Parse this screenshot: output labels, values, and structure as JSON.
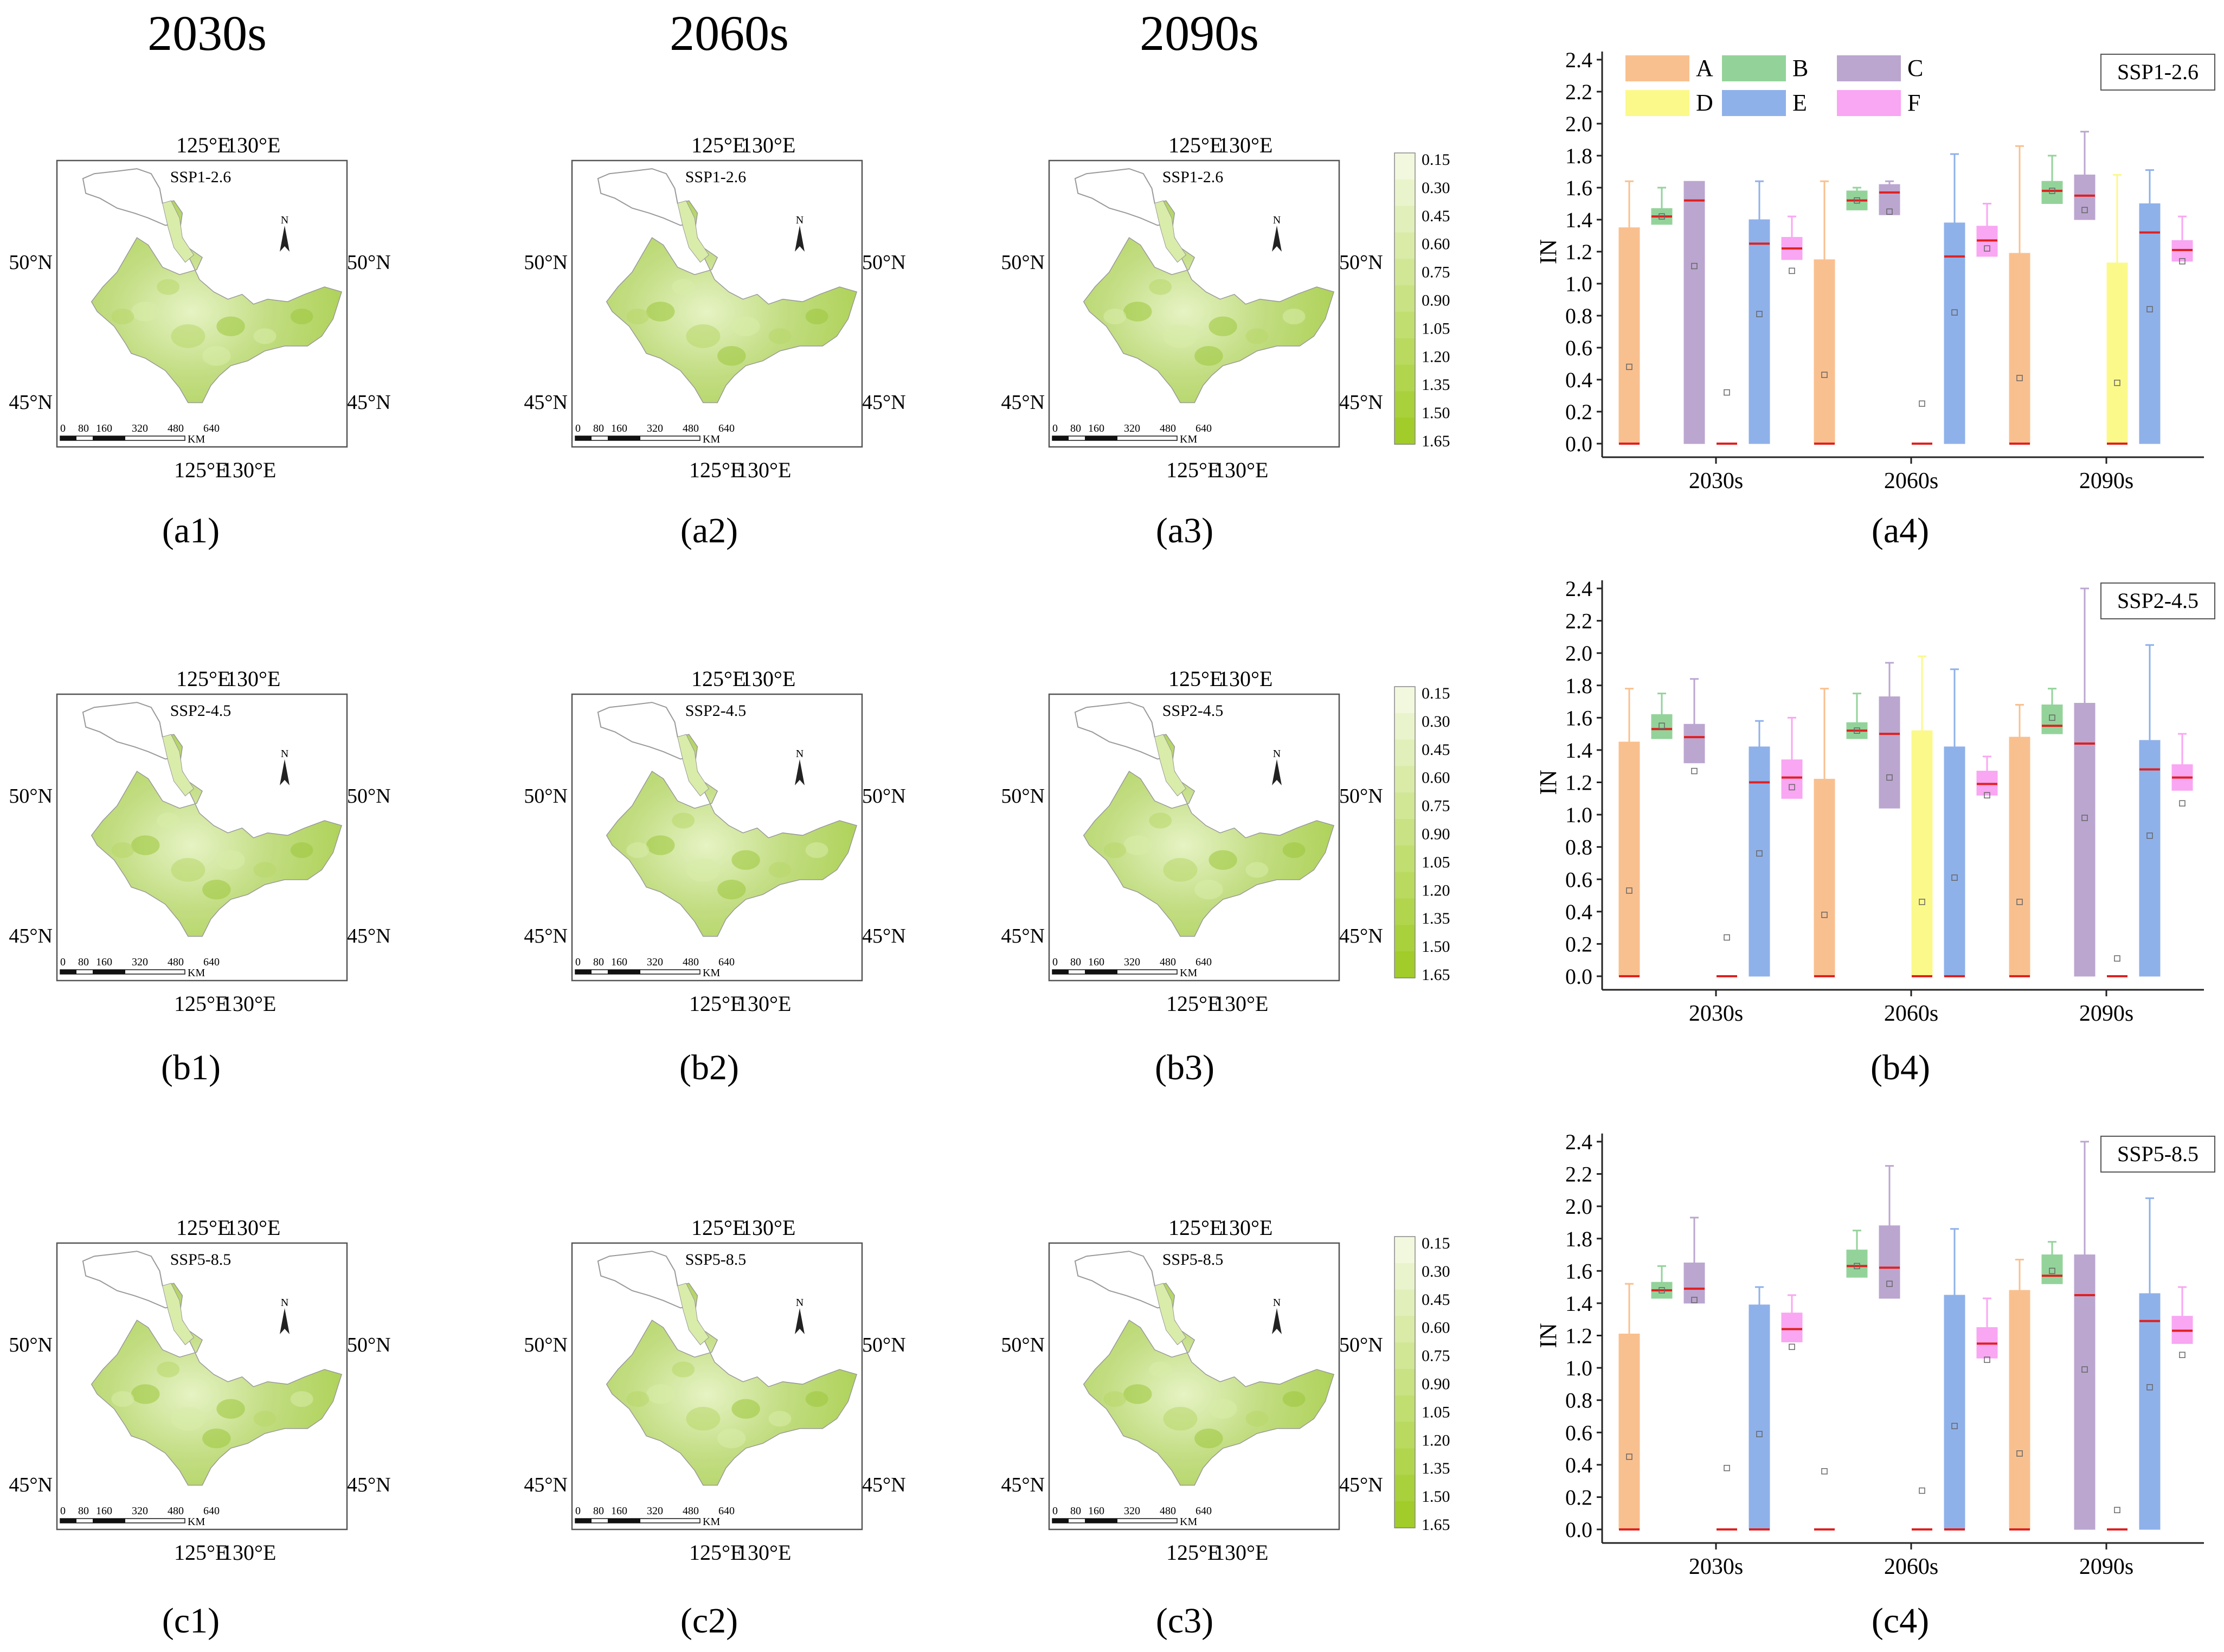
{
  "column_headers": [
    "2030s",
    "2060s",
    "2090s"
  ],
  "scenarios": [
    "SSP1-2.6",
    "SSP2-4.5",
    "SSP5-8.5"
  ],
  "map": {
    "lon_top": [
      "125°E",
      "130°E"
    ],
    "lon_bottom": [
      "125°E",
      "130°E"
    ],
    "lat_left": [
      "50°N",
      "45°N"
    ],
    "lat_right": [
      "50°N",
      "45°N"
    ],
    "north_label": "N",
    "scalebar_ticks": [
      "0",
      "80",
      "160",
      "320",
      "480",
      "640"
    ],
    "scalebar_unit": "KM",
    "colors": {
      "land_light": "#d9ecaa",
      "land_mid": "#b8d76a",
      "land_dark": "#9cc63c",
      "outline": "#999999"
    }
  },
  "legend_bar": {
    "labels": [
      "0.15",
      "0.30",
      "0.45",
      "0.60",
      "0.75",
      "0.90",
      "1.05",
      "1.20",
      "1.35",
      "1.50",
      "1.65"
    ],
    "colors": [
      "#f1f8de",
      "#e9f4cc",
      "#e1efba",
      "#d9eba7",
      "#d1e795",
      "#c9e283",
      "#c1de71",
      "#b9da5f",
      "#b1d54d",
      "#a9d13b",
      "#a1cc29"
    ]
  },
  "panel_labels": {
    "row_a": [
      "(a1)",
      "(a2)",
      "(a3)",
      "(a4)"
    ],
    "row_b": [
      "(b1)",
      "(b2)",
      "(b3)",
      "(b4)"
    ],
    "row_c": [
      "(c1)",
      "(c2)",
      "(c3)",
      "(c4)"
    ]
  },
  "box_legend": [
    {
      "key": "A",
      "color": "#f9c08f"
    },
    {
      "key": "B",
      "color": "#93d39a"
    },
    {
      "key": "C",
      "color": "#bba6d0"
    },
    {
      "key": "D",
      "color": "#fbf98a"
    },
    {
      "key": "E",
      "color": "#8fb1ea"
    },
    {
      "key": "F",
      "color": "#f9a6f3"
    }
  ],
  "chart_data": [
    {
      "type": "box",
      "scenario": "SSP1-2.6",
      "title": "SSP1-2.6",
      "ylabel": "IN",
      "ylim": [
        0.0,
        2.4
      ],
      "yticks": [
        "0.0",
        "0.2",
        "0.4",
        "0.6",
        "0.8",
        "1.0",
        "1.2",
        "1.4",
        "1.6",
        "1.8",
        "2.0",
        "2.2",
        "2.4"
      ],
      "categories": [
        "2030s",
        "2060s",
        "2090s"
      ],
      "series": [
        {
          "name": "A",
          "color": "#f9c08f",
          "boxes": [
            {
              "q1": 0.0,
              "q3": 1.35,
              "median": 0.0,
              "mean": 0.48,
              "wlo": 0.0,
              "whi": 1.64
            },
            {
              "q1": 0.0,
              "q3": 1.15,
              "median": 0.0,
              "mean": 0.43,
              "wlo": 0.0,
              "whi": 1.64
            },
            {
              "q1": 0.0,
              "q3": 1.19,
              "median": 0.0,
              "mean": 0.41,
              "wlo": 0.0,
              "whi": 1.86
            }
          ]
        },
        {
          "name": "B",
          "color": "#93d39a",
          "boxes": [
            {
              "q1": 1.37,
              "q3": 1.47,
              "median": 1.42,
              "mean": 1.42,
              "wlo": 1.3,
              "whi": 1.6
            },
            {
              "q1": 1.46,
              "q3": 1.58,
              "median": 1.52,
              "mean": 1.52,
              "wlo": 1.35,
              "whi": 1.6
            },
            {
              "q1": 1.5,
              "q3": 1.64,
              "median": 1.58,
              "mean": 1.58,
              "wlo": 1.4,
              "whi": 1.8
            }
          ]
        },
        {
          "name": "C",
          "color": "#bba6d0",
          "boxes": [
            {
              "q1": 0.0,
              "q3": 1.64,
              "median": 1.52,
              "mean": 1.11,
              "wlo": 0.0,
              "whi": 1.64
            },
            {
              "q1": 1.43,
              "q3": 1.62,
              "median": 1.57,
              "mean": 1.45,
              "wlo": 1.19,
              "whi": 1.64
            },
            {
              "q1": 1.4,
              "q3": 1.68,
              "median": 1.55,
              "mean": 1.46,
              "wlo": 1.36,
              "whi": 1.95
            }
          ]
        },
        {
          "name": "D",
          "color": "#fbf98a",
          "boxes": [
            {
              "q1": 0.0,
              "q3": 0.0,
              "median": 0.0,
              "mean": 0.32,
              "wlo": 0.0,
              "whi": 0.0
            },
            {
              "q1": 0.0,
              "q3": 0.0,
              "median": 0.0,
              "mean": 0.25,
              "wlo": 0.0,
              "whi": 0.0
            },
            {
              "q1": 0.0,
              "q3": 1.13,
              "median": 0.0,
              "mean": 0.38,
              "wlo": 0.0,
              "whi": 1.68
            }
          ]
        },
        {
          "name": "E",
          "color": "#8fb1ea",
          "boxes": [
            {
              "q1": 0.0,
              "q3": 1.4,
              "median": 1.25,
              "mean": 0.81,
              "wlo": 0.0,
              "whi": 1.64
            },
            {
              "q1": 0.0,
              "q3": 1.38,
              "median": 1.17,
              "mean": 0.82,
              "wlo": 0.0,
              "whi": 1.81
            },
            {
              "q1": 0.0,
              "q3": 1.5,
              "median": 1.32,
              "mean": 0.84,
              "wlo": 0.0,
              "whi": 1.71
            }
          ]
        },
        {
          "name": "F",
          "color": "#f9a6f3",
          "boxes": [
            {
              "q1": 1.15,
              "q3": 1.29,
              "median": 1.22,
              "mean": 1.08,
              "wlo": 0.95,
              "whi": 1.42
            },
            {
              "q1": 1.17,
              "q3": 1.36,
              "median": 1.27,
              "mean": 1.22,
              "wlo": 1.1,
              "whi": 1.5
            },
            {
              "q1": 1.14,
              "q3": 1.27,
              "median": 1.21,
              "mean": 1.14,
              "wlo": 1.02,
              "whi": 1.42
            }
          ]
        }
      ]
    },
    {
      "type": "box",
      "scenario": "SSP2-4.5",
      "title": "SSP2-4.5",
      "ylabel": "IN",
      "ylim": [
        0.0,
        2.4
      ],
      "yticks": [
        "0.0",
        "0.2",
        "0.4",
        "0.6",
        "0.8",
        "1.0",
        "1.2",
        "1.4",
        "1.6",
        "1.8",
        "2.0",
        "2.2",
        "2.4"
      ],
      "categories": [
        "2030s",
        "2060s",
        "2090s"
      ],
      "series": [
        {
          "name": "A",
          "color": "#f9c08f",
          "boxes": [
            {
              "q1": 0.0,
              "q3": 1.45,
              "median": 0.0,
              "mean": 0.53,
              "wlo": 0.0,
              "whi": 1.78
            },
            {
              "q1": 0.0,
              "q3": 1.22,
              "median": 0.0,
              "mean": 0.38,
              "wlo": 0.0,
              "whi": 1.78
            },
            {
              "q1": 0.0,
              "q3": 1.48,
              "median": 0.0,
              "mean": 0.46,
              "wlo": 0.0,
              "whi": 1.68
            }
          ]
        },
        {
          "name": "B",
          "color": "#93d39a",
          "boxes": [
            {
              "q1": 1.47,
              "q3": 1.62,
              "median": 1.53,
              "mean": 1.55,
              "wlo": 1.32,
              "whi": 1.75
            },
            {
              "q1": 1.47,
              "q3": 1.57,
              "median": 1.52,
              "mean": 1.52,
              "wlo": 1.3,
              "whi": 1.75
            },
            {
              "q1": 1.5,
              "q3": 1.68,
              "median": 1.55,
              "mean": 1.6,
              "wlo": 1.36,
              "whi": 1.78
            }
          ]
        },
        {
          "name": "C",
          "color": "#bba6d0",
          "boxes": [
            {
              "q1": 1.32,
              "q3": 1.56,
              "median": 1.48,
              "mean": 1.27,
              "wlo": 1.25,
              "whi": 1.84
            },
            {
              "q1": 1.04,
              "q3": 1.73,
              "median": 1.5,
              "mean": 1.23,
              "wlo": 1.04,
              "whi": 1.94
            },
            {
              "q1": 0.0,
              "q3": 1.69,
              "median": 1.44,
              "mean": 0.98,
              "wlo": 0.0,
              "whi": 2.4
            }
          ]
        },
        {
          "name": "D",
          "color": "#fbf98a",
          "boxes": [
            {
              "q1": 0.0,
              "q3": 0.0,
              "median": 0.0,
              "mean": 0.24,
              "wlo": 0.0,
              "whi": 0.0
            },
            {
              "q1": 0.0,
              "q3": 1.52,
              "median": 0.0,
              "mean": 0.46,
              "wlo": 0.0,
              "whi": 1.98
            },
            {
              "q1": 0.0,
              "q3": 0.0,
              "median": 0.0,
              "mean": 0.11,
              "wlo": 0.0,
              "whi": 0.0
            }
          ]
        },
        {
          "name": "E",
          "color": "#8fb1ea",
          "boxes": [
            {
              "q1": 0.0,
              "q3": 1.42,
              "median": 1.2,
              "mean": 0.76,
              "wlo": 0.0,
              "whi": 1.58
            },
            {
              "q1": 0.0,
              "q3": 1.42,
              "median": 0.0,
              "mean": 0.61,
              "wlo": 0.0,
              "whi": 1.9
            },
            {
              "q1": 0.0,
              "q3": 1.46,
              "median": 1.28,
              "mean": 0.87,
              "wlo": 0.0,
              "whi": 2.05
            }
          ]
        },
        {
          "name": "F",
          "color": "#f9a6f3",
          "boxes": [
            {
              "q1": 1.1,
              "q3": 1.34,
              "median": 1.23,
              "mean": 1.17,
              "wlo": 0.95,
              "whi": 1.6
            },
            {
              "q1": 1.12,
              "q3": 1.27,
              "median": 1.19,
              "mean": 1.12,
              "wlo": 1.02,
              "whi": 1.36
            },
            {
              "q1": 1.15,
              "q3": 1.31,
              "median": 1.23,
              "mean": 1.07,
              "wlo": 0.93,
              "whi": 1.5
            }
          ]
        }
      ]
    },
    {
      "type": "box",
      "scenario": "SSP5-8.5",
      "title": "SSP5-8.5",
      "ylabel": "IN",
      "ylim": [
        0.0,
        2.4
      ],
      "yticks": [
        "0.0",
        "0.2",
        "0.4",
        "0.6",
        "0.8",
        "1.0",
        "1.2",
        "1.4",
        "1.6",
        "1.8",
        "2.0",
        "2.2",
        "2.4"
      ],
      "categories": [
        "2030s",
        "2060s",
        "2090s"
      ],
      "series": [
        {
          "name": "A",
          "color": "#f9c08f",
          "boxes": [
            {
              "q1": 0.0,
              "q3": 1.21,
              "median": 0.0,
              "mean": 0.45,
              "wlo": 0.0,
              "whi": 1.52
            },
            {
              "q1": 0.0,
              "q3": 0.0,
              "median": 0.0,
              "mean": 0.36,
              "wlo": 0.0,
              "whi": 0.0
            },
            {
              "q1": 0.0,
              "q3": 1.48,
              "median": 0.0,
              "mean": 0.47,
              "wlo": 0.0,
              "whi": 1.67
            }
          ]
        },
        {
          "name": "B",
          "color": "#93d39a",
          "boxes": [
            {
              "q1": 1.43,
              "q3": 1.53,
              "median": 1.48,
              "mean": 1.48,
              "wlo": 1.35,
              "whi": 1.63
            },
            {
              "q1": 1.56,
              "q3": 1.73,
              "median": 1.63,
              "mean": 1.63,
              "wlo": 1.42,
              "whi": 1.85
            },
            {
              "q1": 1.52,
              "q3": 1.7,
              "median": 1.57,
              "mean": 1.6,
              "wlo": 1.3,
              "whi": 1.78
            }
          ]
        },
        {
          "name": "C",
          "color": "#bba6d0",
          "boxes": [
            {
              "q1": 1.4,
              "q3": 1.65,
              "median": 1.49,
              "mean": 1.42,
              "wlo": 1.08,
              "whi": 1.93
            },
            {
              "q1": 1.43,
              "q3": 1.88,
              "median": 1.62,
              "mean": 1.52,
              "wlo": 1.38,
              "whi": 2.25
            },
            {
              "q1": 0.0,
              "q3": 1.7,
              "median": 1.45,
              "mean": 0.99,
              "wlo": 0.0,
              "whi": 2.4
            }
          ]
        },
        {
          "name": "D",
          "color": "#fbf98a",
          "boxes": [
            {
              "q1": 0.0,
              "q3": 0.0,
              "median": 0.0,
              "mean": 0.38,
              "wlo": 0.0,
              "whi": 0.0
            },
            {
              "q1": 0.0,
              "q3": 0.0,
              "median": 0.0,
              "mean": 0.24,
              "wlo": 0.0,
              "whi": 0.0
            },
            {
              "q1": 0.0,
              "q3": 0.0,
              "median": 0.0,
              "mean": 0.12,
              "wlo": 0.0,
              "whi": 0.0
            }
          ]
        },
        {
          "name": "E",
          "color": "#8fb1ea",
          "boxes": [
            {
              "q1": 0.0,
              "q3": 1.39,
              "median": 0.0,
              "mean": 0.59,
              "wlo": 0.0,
              "whi": 1.5
            },
            {
              "q1": 0.0,
              "q3": 1.45,
              "median": 0.0,
              "mean": 0.64,
              "wlo": 0.0,
              "whi": 1.86
            },
            {
              "q1": 0.0,
              "q3": 1.46,
              "median": 1.29,
              "mean": 0.88,
              "wlo": 0.0,
              "whi": 2.05
            }
          ]
        },
        {
          "name": "F",
          "color": "#f9a6f3",
          "boxes": [
            {
              "q1": 1.16,
              "q3": 1.34,
              "median": 1.24,
              "mean": 1.13,
              "wlo": 1.08,
              "whi": 1.45
            },
            {
              "q1": 1.06,
              "q3": 1.25,
              "median": 1.15,
              "mean": 1.05,
              "wlo": 1.0,
              "whi": 1.43
            },
            {
              "q1": 1.15,
              "q3": 1.32,
              "median": 1.23,
              "mean": 1.08,
              "wlo": 0.92,
              "whi": 1.5
            }
          ]
        }
      ]
    }
  ]
}
